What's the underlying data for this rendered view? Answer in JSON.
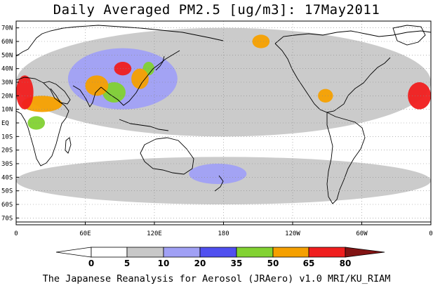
{
  "title": "Daily Averaged PM2.5 [ug/m3]: 17May2011",
  "credit": "The Japanese Reanalysis for Aerosol (JRAero) v1.0 MRI/KU_RIAM",
  "map": {
    "projection": "equirectangular",
    "lon_range": [
      0,
      360
    ],
    "lat_range": [
      -75,
      75
    ],
    "grid": true,
    "lat_ticks": [
      {
        "lat": 70,
        "label": "70N"
      },
      {
        "lat": 60,
        "label": "60N"
      },
      {
        "lat": 50,
        "label": "50N"
      },
      {
        "lat": 40,
        "label": "40N"
      },
      {
        "lat": 30,
        "label": "30N"
      },
      {
        "lat": 20,
        "label": "20N"
      },
      {
        "lat": 10,
        "label": "10N"
      },
      {
        "lat": 0,
        "label": "EQ"
      },
      {
        "lat": -10,
        "label": "10S"
      },
      {
        "lat": -20,
        "label": "20S"
      },
      {
        "lat": -30,
        "label": "30S"
      },
      {
        "lat": -40,
        "label": "40S"
      },
      {
        "lat": -50,
        "label": "50S"
      },
      {
        "lat": -60,
        "label": "60S"
      },
      {
        "lat": -70,
        "label": "70S"
      }
    ],
    "lon_ticks": [
      {
        "lon": 0,
        "label": "0"
      },
      {
        "lon": 60,
        "label": "60E"
      },
      {
        "lon": 120,
        "label": "120E"
      },
      {
        "lon": 180,
        "label": "180"
      },
      {
        "lon": 240,
        "label": "120W"
      },
      {
        "lon": 300,
        "label": "60W"
      },
      {
        "lon": 360,
        "label": "0"
      }
    ]
  },
  "legend": {
    "units": "ug/m3",
    "bins": [
      {
        "upper": 0,
        "color": "#ffffff"
      },
      {
        "upper": 5,
        "color": "#ffffff"
      },
      {
        "upper": 10,
        "color": "#c8c8c8"
      },
      {
        "upper": 20,
        "color": "#a0a0f5"
      },
      {
        "upper": 35,
        "color": "#5050f0"
      },
      {
        "upper": 50,
        "color": "#82d232"
      },
      {
        "upper": 65,
        "color": "#f5a000"
      },
      {
        "upper": 80,
        "color": "#f01e1e"
      },
      {
        "upper": null,
        "color": "#821414"
      }
    ],
    "labels": [
      "0",
      "5",
      "10",
      "20",
      "35",
      "50",
      "65",
      "80"
    ]
  },
  "chart_data": {
    "type": "heatmap",
    "title": "Daily Averaged PM2.5 [ug/m3]: 17May2011",
    "variable": "PM2.5",
    "units": "ug/m3",
    "date": "17May2011",
    "regions": [
      {
        "lon": [
          0,
          15
        ],
        "lat": [
          10,
          35
        ],
        "level": 80
      },
      {
        "lon": [
          5,
          40
        ],
        "lat": [
          8,
          20
        ],
        "level": 65
      },
      {
        "lon": [
          10,
          25
        ],
        "lat": [
          -5,
          5
        ],
        "level": 50
      },
      {
        "lon": [
          60,
          80
        ],
        "lat": [
          20,
          35
        ],
        "level": 65
      },
      {
        "lon": [
          75,
          95
        ],
        "lat": [
          15,
          30
        ],
        "level": 50
      },
      {
        "lon": [
          85,
          100
        ],
        "lat": [
          35,
          45
        ],
        "level": 80
      },
      {
        "lon": [
          100,
          115
        ],
        "lat": [
          25,
          40
        ],
        "level": 65
      },
      {
        "lon": [
          110,
          120
        ],
        "lat": [
          35,
          45
        ],
        "level": 50
      },
      {
        "lon": [
          205,
          220
        ],
        "lat": [
          55,
          65
        ],
        "level": 65
      },
      {
        "lon": [
          262,
          275
        ],
        "lat": [
          15,
          25
        ],
        "level": 65
      },
      {
        "lon": [
          340,
          360
        ],
        "lat": [
          10,
          30
        ],
        "level": 80
      },
      {
        "lon": [
          45,
          140
        ],
        "lat": [
          10,
          55
        ],
        "level": 20
      },
      {
        "lon": [
          150,
          200
        ],
        "lat": [
          -45,
          -30
        ],
        "level": 20
      },
      {
        "lon": [
          0,
          360
        ],
        "lat": [
          -60,
          -25
        ],
        "level": 10
      },
      {
        "lon": [
          0,
          360
        ],
        "lat": [
          -10,
          70
        ],
        "level": 10
      }
    ]
  }
}
